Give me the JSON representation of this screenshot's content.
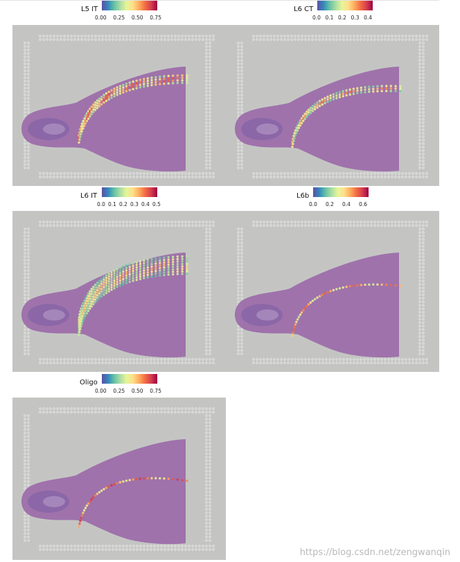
{
  "panels": [
    {
      "label": "L5 IT",
      "ticks": [
        "0.00",
        "0.25",
        "0.50",
        "0.75"
      ],
      "band": "cortex_l5"
    },
    {
      "label": "L6 CT",
      "ticks": [
        "0.0",
        "0.1",
        "0.2",
        "0.3",
        "0.4"
      ],
      "band": "cortex_l6"
    },
    {
      "label": "L6 IT",
      "ticks": [
        "0.0",
        "0.1",
        "0.2",
        "0.3",
        "0.4",
        "0.5"
      ],
      "band": "cortex_wide"
    },
    {
      "label": "L6b",
      "ticks": [
        "0.0",
        "0.2",
        "0.4",
        "0.6"
      ],
      "band": "thin_line"
    },
    {
      "label": "Oligo",
      "ticks": [
        "0.00",
        "0.25",
        "0.50",
        "0.75"
      ],
      "band": "white_matter"
    }
  ],
  "colormap": [
    "#5e4fa2",
    "#3288bd",
    "#66c2a5",
    "#abdda4",
    "#e6f598",
    "#fee08b",
    "#fdae61",
    "#f46d43",
    "#d53e4f",
    "#9e0142"
  ],
  "tissue_color": "#9b6aa9",
  "background_color": "#c4c5c3",
  "watermark": "https://blog.csdn.net/zengwanqin"
}
